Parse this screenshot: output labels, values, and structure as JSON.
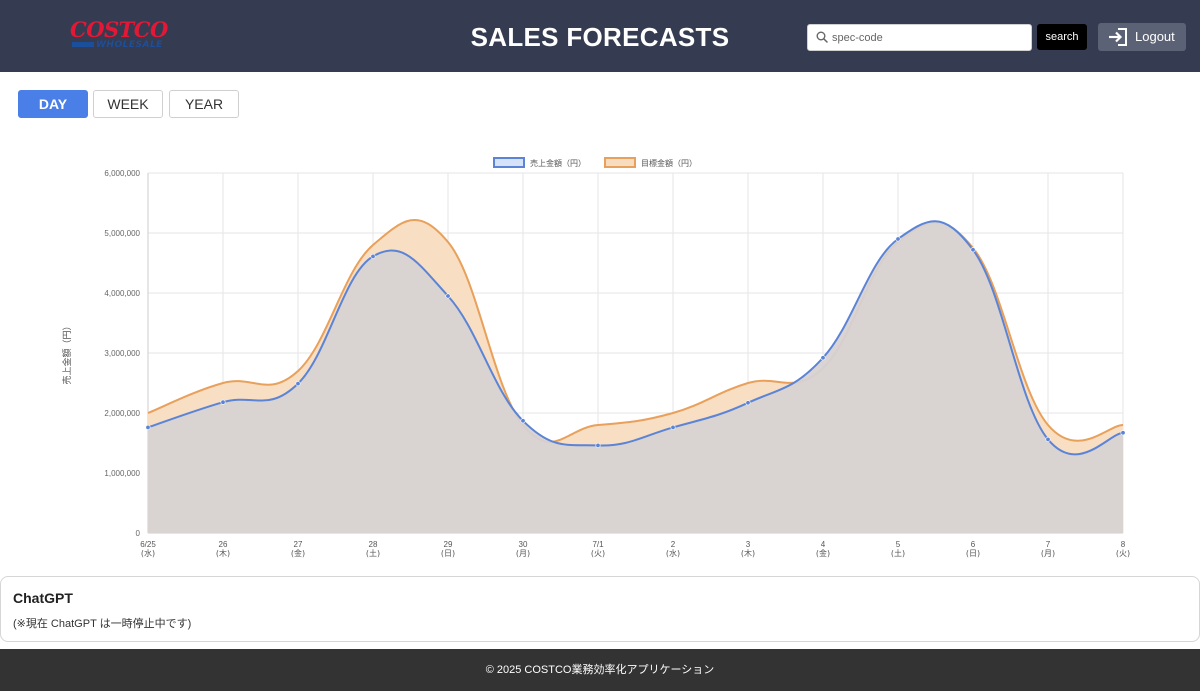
{
  "header": {
    "logo_top": "COSTCO",
    "logo_bottom": "WHOLESALE",
    "title": "SALES FORECASTS",
    "search_placeholder": "spec-code",
    "search_value": "",
    "search_label": "search",
    "logout_label": "Logout",
    "bg_color": "#353b50",
    "logo_color": "#e31837"
  },
  "tabs": [
    {
      "label": "DAY",
      "active": true
    },
    {
      "label": "WEEK",
      "active": false
    },
    {
      "label": "YEAR",
      "active": false
    }
  ],
  "chart_data": {
    "type": "area",
    "title": "",
    "xlabel": "",
    "ylabel": "売上金額（円）",
    "ylim": [
      0,
      6000000
    ],
    "yticks": [
      "0",
      "1,000,000",
      "2,000,000",
      "3,000,000",
      "4,000,000",
      "5,000,000",
      "6,000,000"
    ],
    "categories": [
      {
        "day": "6/25",
        "dow": "(水)"
      },
      {
        "day": "26",
        "dow": "(木)"
      },
      {
        "day": "27",
        "dow": "(金)"
      },
      {
        "day": "28",
        "dow": "(土)"
      },
      {
        "day": "29",
        "dow": "(日)"
      },
      {
        "day": "30",
        "dow": "(月)"
      },
      {
        "day": "7/1",
        "dow": "(火)"
      },
      {
        "day": "2",
        "dow": "(水)"
      },
      {
        "day": "3",
        "dow": "(木)"
      },
      {
        "day": "4",
        "dow": "(金)"
      },
      {
        "day": "5",
        "dow": "(土)"
      },
      {
        "day": "6",
        "dow": "(日)"
      },
      {
        "day": "7",
        "dow": "(月)"
      },
      {
        "day": "8",
        "dow": "(火)"
      }
    ],
    "series": [
      {
        "name": "目標金額（円）",
        "color": "#e8a05a",
        "fill": "#f8dcc0",
        "values": [
          2000000,
          2500000,
          2700000,
          4800000,
          4850000,
          1800000,
          1800000,
          2000000,
          2500000,
          2750000,
          4850000,
          4750000,
          1800000,
          1800000
        ]
      },
      {
        "name": "売上金額（円）",
        "color": "#5b84d6",
        "fill": "#d6d1d4",
        "values": [
          1760000,
          2180000,
          2490000,
          4610000,
          3950000,
          1870000,
          1460000,
          1760000,
          2170000,
          2920000,
          4900000,
          4720000,
          1560000,
          1670000
        ]
      }
    ],
    "legend": [
      "売上金額（円）",
      "目標金額（円）"
    ],
    "legend_position": "top-center",
    "grid": true
  },
  "chatgpt": {
    "title": "ChatGPT",
    "message": "(※現在 ChatGPT は一時停止中です)"
  },
  "footer": {
    "text": "© 2025 COSTCO業務効率化アプリケーション"
  }
}
